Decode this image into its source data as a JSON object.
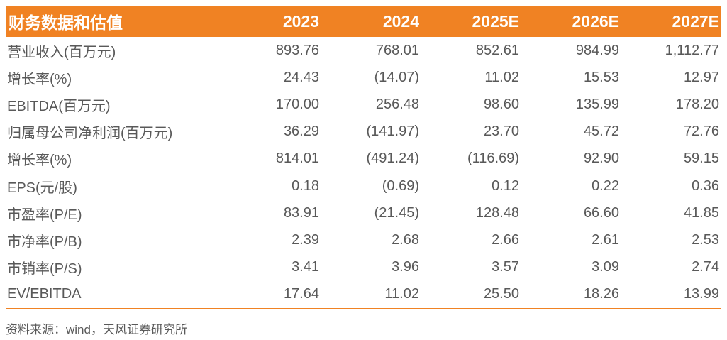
{
  "colors": {
    "accent": "#F08223",
    "body_text": "#595959",
    "header_text": "#FFFFFF"
  },
  "table": {
    "header": {
      "label": "财务数据和估值",
      "years": [
        "2023",
        "2024",
        "2025E",
        "2026E",
        "2027E"
      ]
    },
    "rows": [
      {
        "label": "营业收入(百万元)",
        "values": [
          "893.76",
          "768.01",
          "852.61",
          "984.99",
          "1,112.77"
        ]
      },
      {
        "label": "增长率(%)",
        "values": [
          "24.43",
          "(14.07)",
          "11.02",
          "15.53",
          "12.97"
        ]
      },
      {
        "label": "EBITDA(百万元)",
        "values": [
          "170.00",
          "256.48",
          "98.60",
          "135.99",
          "178.20"
        ]
      },
      {
        "label": "归属母公司净利润(百万元)",
        "values": [
          "36.29",
          "(141.97)",
          "23.70",
          "45.72",
          "72.76"
        ]
      },
      {
        "label": "增长率(%)",
        "values": [
          "814.01",
          "(491.24)",
          "(116.69)",
          "92.90",
          "59.15"
        ]
      },
      {
        "label": "EPS(元/股)",
        "values": [
          "0.18",
          "(0.69)",
          "0.12",
          "0.22",
          "0.36"
        ]
      },
      {
        "label": "市盈率(P/E)",
        "values": [
          "83.91",
          "(21.45)",
          "128.48",
          "66.60",
          "41.85"
        ]
      },
      {
        "label": "市净率(P/B)",
        "values": [
          "2.39",
          "2.68",
          "2.66",
          "2.61",
          "2.53"
        ]
      },
      {
        "label": "市销率(P/S)",
        "values": [
          "3.41",
          "3.96",
          "3.57",
          "3.09",
          "2.74"
        ]
      },
      {
        "label": "EV/EBITDA",
        "values": [
          "17.64",
          "11.02",
          "25.50",
          "18.26",
          "13.99"
        ]
      }
    ]
  },
  "footer": {
    "source": "资料来源：wind，天风证券研究所"
  }
}
